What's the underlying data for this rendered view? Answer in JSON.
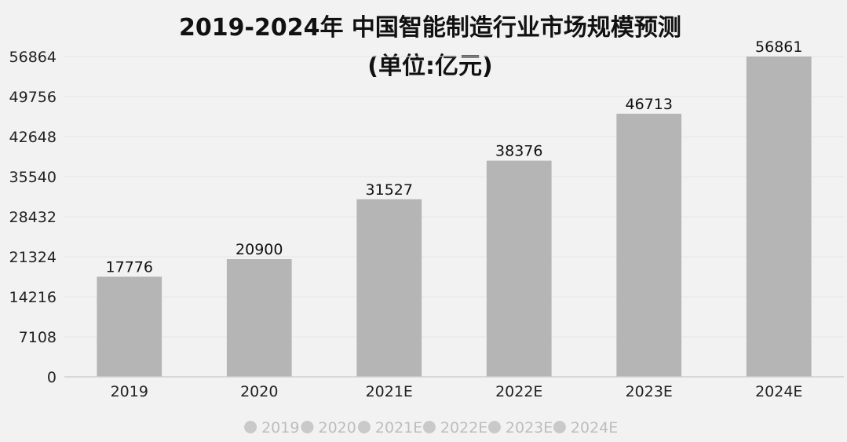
{
  "chart_data": {
    "type": "bar",
    "title": "2019-2024年 中国智能制造行业市场规模预测",
    "subtitle": "(单位:亿元)",
    "xlabel": "",
    "ylabel": "",
    "categories": [
      "2019",
      "2020",
      "2021E",
      "2022E",
      "2023E",
      "2024E"
    ],
    "values": [
      17776,
      20900,
      31527,
      38376,
      46713,
      56861
    ],
    "data_labels": [
      "17776",
      "20900",
      "31527",
      "38376",
      "46713",
      "56861"
    ],
    "ylim": [
      0,
      56864
    ],
    "yticks": [
      0,
      7108,
      14216,
      21324,
      28432,
      35540,
      42648,
      49756,
      56864
    ],
    "ytick_labels": [
      "0",
      "7108",
      "14216",
      "21324",
      "28432",
      "35540",
      "42648",
      "49756",
      "56864"
    ],
    "grid": true,
    "legend": {
      "placement": "bottom-center",
      "entries": [
        "2019",
        "2020",
        "2021E",
        "2022E",
        "2023E",
        "2024E"
      ]
    },
    "colors": {
      "bar": "#b5b5b5",
      "gridline": "#e6e6e6",
      "axis": "#cfcfcf",
      "legend_marker": "#c9c9c9",
      "background": "#f2f2f2"
    }
  }
}
